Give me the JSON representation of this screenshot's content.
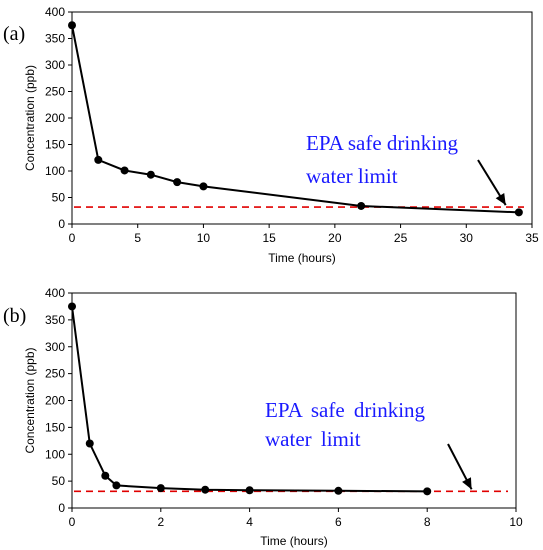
{
  "chart_data": [
    {
      "type": "line",
      "panel_label": "(a)",
      "xlabel": "Time (hours)",
      "ylabel": "Concentration (ppb)",
      "xlim": [
        0,
        35
      ],
      "ylim": [
        0,
        400
      ],
      "xticks": [
        0,
        5,
        10,
        15,
        20,
        25,
        30,
        35
      ],
      "yticks": [
        0,
        50,
        100,
        150,
        200,
        250,
        300,
        350,
        400
      ],
      "series": [
        {
          "x": [
            0,
            2,
            4,
            6,
            8,
            10,
            22,
            34
          ],
          "y": [
            375,
            121,
            101,
            93,
            79,
            71,
            34,
            22
          ],
          "color": "#000000"
        }
      ],
      "reference_line": {
        "y": 32,
        "color": "#e00000",
        "style": "dashed"
      },
      "annotation": {
        "lines": [
          "EPA safe drinking",
          "water limit"
        ],
        "color": "#1a1aff",
        "arrow_to": {
          "x": 33,
          "y": 32
        }
      },
      "grid": false,
      "legend": "none"
    },
    {
      "type": "line",
      "panel_label": "(b)",
      "xlabel": "Time (hours)",
      "ylabel": "Concentration (ppb)",
      "xlim": [
        0,
        10
      ],
      "ylim": [
        0,
        400
      ],
      "xticks": [
        0,
        2,
        4,
        6,
        8,
        10
      ],
      "yticks": [
        0,
        50,
        100,
        150,
        200,
        250,
        300,
        350,
        400
      ],
      "series": [
        {
          "x": [
            0,
            0.4,
            0.75,
            1,
            2,
            3,
            4,
            6,
            8
          ],
          "y": [
            375,
            120,
            60,
            42,
            37,
            34,
            33,
            32,
            31
          ],
          "color": "#000000"
        }
      ],
      "reference_line": {
        "y": 31,
        "color": "#e00000",
        "style": "dashed"
      },
      "annotation": {
        "lines": [
          "EPA safe drinking",
          "water limit"
        ],
        "color": "#1a1aff",
        "arrow_to": {
          "x": 9,
          "y": 31
        }
      },
      "grid": false,
      "legend": "none"
    }
  ]
}
